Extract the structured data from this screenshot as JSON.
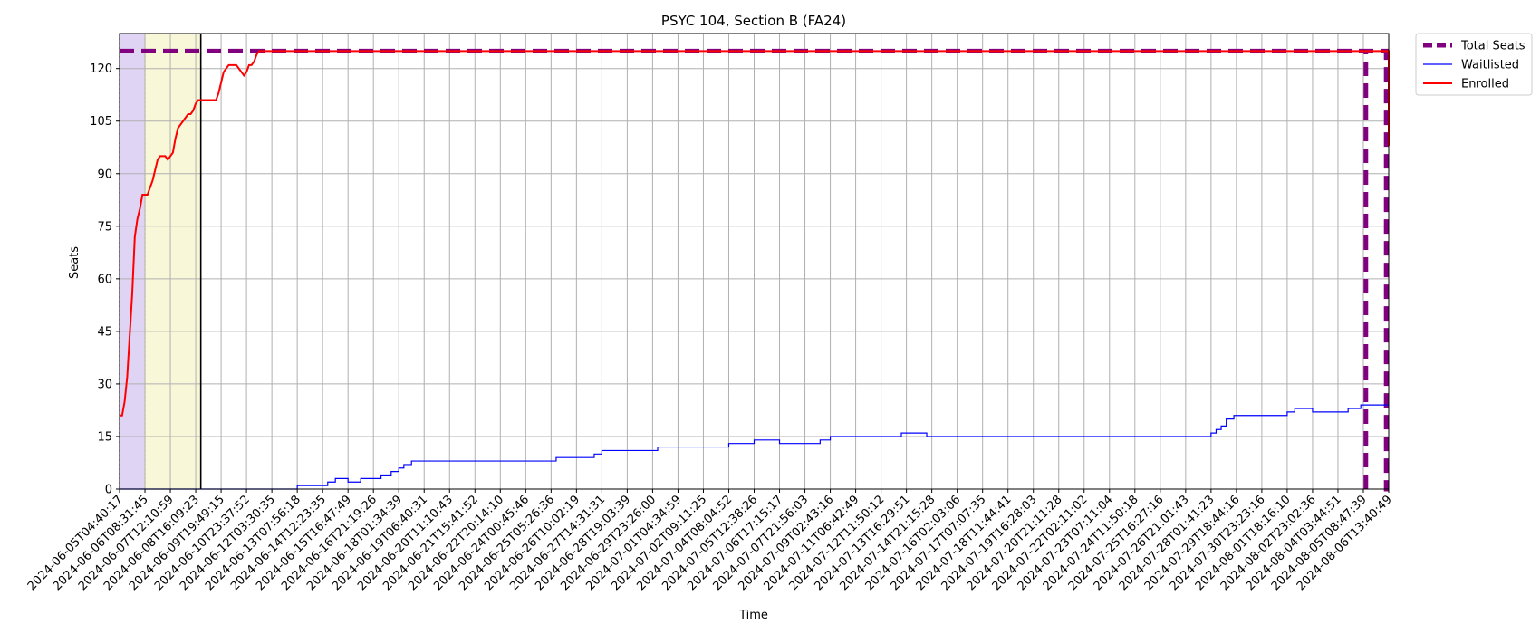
{
  "chart_data": {
    "type": "line",
    "title": "PSYC 104, Section B (FA24)",
    "xlabel": "Time",
    "ylabel": "Seats",
    "ylim": [
      0,
      130
    ],
    "yticks": [
      0,
      15,
      30,
      45,
      60,
      75,
      90,
      105,
      120
    ],
    "grid": true,
    "legend_position": "outside top-right",
    "x_tick_labels": [
      "2024-06-05T04:40:17",
      "2024-06-06T08:31:45",
      "2024-06-07T12:10:59",
      "2024-06-08T16:09:23",
      "2024-06-09T19:49:15",
      "2024-06-10T23:37:52",
      "2024-06-12T03:30:35",
      "2024-06-13T07:56:18",
      "2024-06-14T12:23:35",
      "2024-06-15T16:47:49",
      "2024-06-16T21:19:26",
      "2024-06-18T01:34:39",
      "2024-06-19T06:40:31",
      "2024-06-20T11:10:43",
      "2024-06-21T15:41:52",
      "2024-06-22T20:14:10",
      "2024-06-24T00:45:46",
      "2024-06-25T05:26:36",
      "2024-06-26T10:02:19",
      "2024-06-27T14:31:31",
      "2024-06-28T19:03:39",
      "2024-06-29T23:26:00",
      "2024-07-01T04:34:59",
      "2024-07-02T09:11:25",
      "2024-07-04T08:04:52",
      "2024-07-05T12:38:26",
      "2024-07-06T17:15:17",
      "2024-07-07T21:56:03",
      "2024-07-09T02:43:16",
      "2024-07-11T06:42:49",
      "2024-07-12T11:50:12",
      "2024-07-13T16:29:51",
      "2024-07-14T21:15:28",
      "2024-07-16T02:03:06",
      "2024-07-17T07:07:35",
      "2024-07-18T11:44:41",
      "2024-07-19T16:28:03",
      "2024-07-20T21:11:28",
      "2024-07-22T02:11:02",
      "2024-07-23T07:11:04",
      "2024-07-24T11:50:18",
      "2024-07-25T16:27:16",
      "2024-07-26T21:01:43",
      "2024-07-28T01:41:23",
      "2024-07-29T18:44:16",
      "2024-07-30T23:23:16",
      "2024-08-01T18:16:10",
      "2024-08-02T23:02:36",
      "2024-08-04T03:44:51",
      "2024-08-05T08:47:39",
      "2024-08-06T13:40:49"
    ],
    "x_range_ticks": [
      0,
      50
    ],
    "shaded_regions": [
      {
        "x_start": 0,
        "x_end": 1,
        "color": "#e0d4f5",
        "edge": "#7b2fd0"
      },
      {
        "x_start": 1,
        "x_end": 3.2,
        "color": "#f8f8d8",
        "edge": "#d8d86a"
      }
    ],
    "vertical_lines": [
      {
        "x": 3.2,
        "color": "#000000",
        "style": "solid"
      }
    ],
    "series": [
      {
        "name": "Total Seats",
        "color": "#800080",
        "style": "dashed-thick",
        "points": [
          [
            0,
            125
          ],
          [
            49.9,
            125
          ],
          [
            49.9,
            0
          ],
          [
            50,
            0
          ]
        ],
        "extra_vertical": [
          [
            49.1,
            0
          ],
          [
            49.1,
            125
          ]
        ]
      },
      {
        "name": "Waitlisted",
        "color": "#0000ff",
        "style": "solid-thin",
        "points": [
          [
            0,
            0
          ],
          [
            7.0,
            0
          ],
          [
            7.0,
            1
          ],
          [
            8.2,
            1
          ],
          [
            8.2,
            2
          ],
          [
            8.5,
            2
          ],
          [
            8.5,
            3
          ],
          [
            9.0,
            3
          ],
          [
            9.0,
            2
          ],
          [
            9.5,
            2
          ],
          [
            9.5,
            3
          ],
          [
            10.3,
            3
          ],
          [
            10.3,
            4
          ],
          [
            10.7,
            4
          ],
          [
            10.7,
            5
          ],
          [
            11.0,
            5
          ],
          [
            11.0,
            6
          ],
          [
            11.2,
            6
          ],
          [
            11.2,
            7
          ],
          [
            11.5,
            7
          ],
          [
            11.5,
            8
          ],
          [
            17.2,
            8
          ],
          [
            17.2,
            9
          ],
          [
            18.7,
            9
          ],
          [
            18.7,
            10
          ],
          [
            19.0,
            10
          ],
          [
            19.0,
            11
          ],
          [
            19.5,
            11
          ],
          [
            19.5,
            11
          ],
          [
            21.2,
            11
          ],
          [
            21.2,
            12
          ],
          [
            24.0,
            12
          ],
          [
            24.0,
            13
          ],
          [
            25.0,
            13
          ],
          [
            25.0,
            14
          ],
          [
            26.0,
            14
          ],
          [
            26.0,
            13
          ],
          [
            27.6,
            13
          ],
          [
            27.6,
            14
          ],
          [
            28.0,
            14
          ],
          [
            28.0,
            15
          ],
          [
            30.8,
            15
          ],
          [
            30.8,
            16
          ],
          [
            31.8,
            16
          ],
          [
            31.8,
            15
          ],
          [
            43.0,
            15
          ],
          [
            43.0,
            16
          ],
          [
            43.2,
            16
          ],
          [
            43.2,
            17
          ],
          [
            43.4,
            17
          ],
          [
            43.4,
            18
          ],
          [
            43.6,
            18
          ],
          [
            43.6,
            20
          ],
          [
            43.9,
            20
          ],
          [
            43.9,
            21
          ],
          [
            46.0,
            21
          ],
          [
            46.0,
            22
          ],
          [
            46.3,
            22
          ],
          [
            46.3,
            23
          ],
          [
            47.0,
            23
          ],
          [
            47.0,
            22
          ],
          [
            48.4,
            22
          ],
          [
            48.4,
            23
          ],
          [
            48.9,
            23
          ],
          [
            48.9,
            24
          ],
          [
            50.0,
            24
          ]
        ]
      },
      {
        "name": "Enrolled",
        "color": "#ff0000",
        "style": "solid",
        "points": [
          [
            0,
            21
          ],
          [
            0.1,
            21
          ],
          [
            0.2,
            25
          ],
          [
            0.3,
            32
          ],
          [
            0.4,
            44
          ],
          [
            0.5,
            56
          ],
          [
            0.6,
            72
          ],
          [
            0.7,
            77
          ],
          [
            0.8,
            80
          ],
          [
            0.9,
            84
          ],
          [
            1.0,
            84
          ],
          [
            1.1,
            84
          ],
          [
            1.2,
            86
          ],
          [
            1.3,
            88
          ],
          [
            1.4,
            91
          ],
          [
            1.5,
            94
          ],
          [
            1.6,
            95
          ],
          [
            1.8,
            95
          ],
          [
            1.9,
            94
          ],
          [
            2.0,
            95
          ],
          [
            2.1,
            96
          ],
          [
            2.2,
            100
          ],
          [
            2.3,
            103
          ],
          [
            2.4,
            104
          ],
          [
            2.5,
            105
          ],
          [
            2.6,
            106
          ],
          [
            2.7,
            107
          ],
          [
            2.8,
            107
          ],
          [
            2.9,
            108
          ],
          [
            3.0,
            110
          ],
          [
            3.1,
            111
          ],
          [
            3.2,
            111
          ],
          [
            3.8,
            111
          ],
          [
            3.9,
            113
          ],
          [
            4.0,
            116
          ],
          [
            4.1,
            119
          ],
          [
            4.2,
            120
          ],
          [
            4.3,
            121
          ],
          [
            4.5,
            121
          ],
          [
            4.6,
            121
          ],
          [
            4.7,
            120
          ],
          [
            4.8,
            119
          ],
          [
            4.9,
            118
          ],
          [
            5.0,
            119
          ],
          [
            5.1,
            121
          ],
          [
            5.2,
            121
          ],
          [
            5.3,
            122
          ],
          [
            5.4,
            124
          ],
          [
            5.5,
            125
          ],
          [
            50.0,
            125
          ],
          [
            50.0,
            98
          ]
        ]
      }
    ]
  }
}
